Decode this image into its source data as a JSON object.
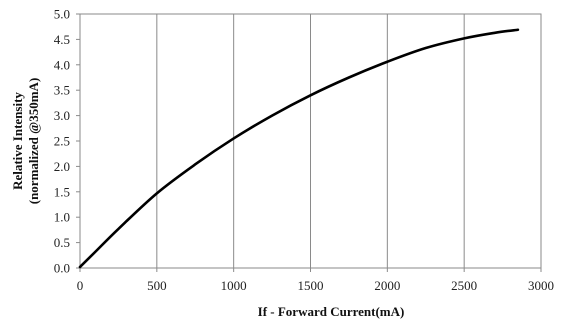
{
  "chart_data": {
    "type": "line",
    "xlabel": "If - Forward Current(mA)",
    "ylabel_lines": [
      "Relative Intensity",
      "(normalized @350mA)"
    ],
    "xlim": [
      0,
      3000
    ],
    "ylim": [
      0.0,
      5.0
    ],
    "x_ticks": [
      0,
      500,
      1000,
      1500,
      2000,
      2500,
      3000
    ],
    "x_tick_labels": [
      "0",
      "500",
      "1000",
      "1500",
      "2000",
      "2500",
      "3000"
    ],
    "y_ticks": [
      0.0,
      0.5,
      1.0,
      1.5,
      2.0,
      2.5,
      3.0,
      3.5,
      4.0,
      4.5,
      5.0
    ],
    "y_tick_labels": [
      "0.0",
      "0.5",
      "1.0",
      "1.5",
      "2.0",
      "2.5",
      "3.0",
      "3.5",
      "4.0",
      "4.5",
      "5.0"
    ],
    "grid": {
      "vertical": true,
      "horizontal": false
    },
    "legend": "none",
    "series": [
      {
        "x": [
          0,
          100,
          250,
          500,
          750,
          1000,
          1250,
          1500,
          1750,
          2000,
          2250,
          2500,
          2700,
          2850
        ],
        "y": [
          0.02,
          0.32,
          0.77,
          1.47,
          2.04,
          2.55,
          3.0,
          3.4,
          3.75,
          4.06,
          4.33,
          4.52,
          4.63,
          4.69
        ],
        "color": "#000000"
      }
    ]
  }
}
